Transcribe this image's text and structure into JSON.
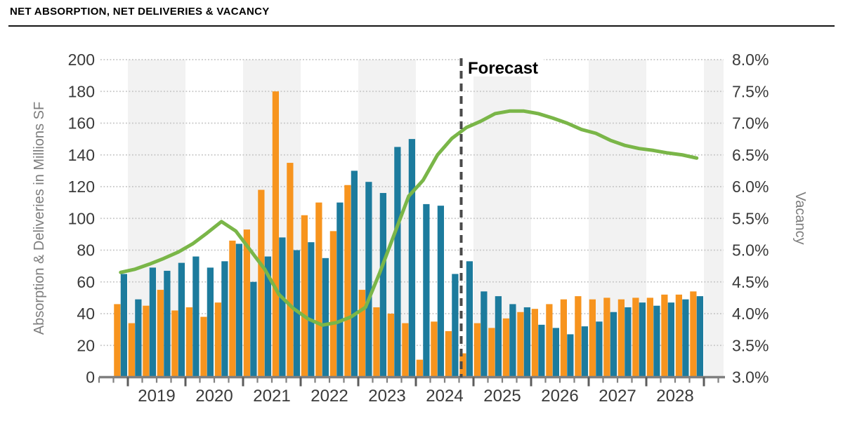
{
  "header": {
    "title": "NET ABSORPTION, NET DELIVERIES & VACANCY"
  },
  "chart_data": {
    "type": "combo_bar_line",
    "title": "NET ABSORPTION, NET DELIVERIES & VACANCY",
    "left_axis": {
      "title": "Absorption & Deliveries in Millions SF",
      "min": 0,
      "max": 200,
      "step": 20,
      "tick_labels": [
        "0",
        "20",
        "40",
        "60",
        "80",
        "100",
        "120",
        "140",
        "160",
        "180",
        "200"
      ]
    },
    "right_axis": {
      "title": "Vacancy",
      "min": 3.0,
      "max": 8.0,
      "step": 0.5,
      "tick_labels": [
        "3.0%",
        "3.5%",
        "4.0%",
        "4.5%",
        "5.0%",
        "5.5%",
        "6.0%",
        "6.5%",
        "7.0%",
        "7.5%",
        "8.0%"
      ]
    },
    "years": [
      "2019",
      "2020",
      "2021",
      "2022",
      "2023",
      "2024",
      "2025",
      "2026",
      "2027",
      "2028"
    ],
    "quarters": [
      "2018 Q4",
      "2019 Q1",
      "2019 Q2",
      "2019 Q3",
      "2019 Q4",
      "2020 Q1",
      "2020 Q2",
      "2020 Q3",
      "2020 Q4",
      "2021 Q1",
      "2021 Q2",
      "2021 Q3",
      "2021 Q4",
      "2022 Q1",
      "2022 Q2",
      "2022 Q3",
      "2022 Q4",
      "2023 Q1",
      "2023 Q2",
      "2023 Q3",
      "2023 Q4",
      "2024 Q1",
      "2024 Q2",
      "2024 Q3",
      "2024 Q4",
      "2025 Q1",
      "2025 Q2",
      "2025 Q3",
      "2025 Q4",
      "2026 Q1",
      "2026 Q2",
      "2026 Q3",
      "2026 Q4",
      "2027 Q1",
      "2027 Q2",
      "2027 Q3",
      "2027 Q4",
      "2028 Q1",
      "2028 Q2",
      "2028 Q3",
      "2028 Q4"
    ],
    "series": [
      {
        "name": "orange bars (millions SF)",
        "axis": "left",
        "color": "#F7941E",
        "values": [
          46,
          34,
          45,
          55,
          42,
          44,
          38,
          47,
          86,
          93,
          118,
          180,
          135,
          102,
          110,
          92,
          121,
          55,
          44,
          40,
          34,
          11,
          35,
          29,
          15,
          34,
          31,
          37,
          41,
          43,
          46,
          49,
          51,
          49,
          50,
          49,
          50,
          50,
          52,
          52,
          54
        ]
      },
      {
        "name": "teal bars (millions SF)",
        "axis": "left",
        "color": "#1C7B9D",
        "values": [
          65,
          49,
          69,
          67,
          72,
          76,
          69,
          73,
          84,
          60,
          76,
          88,
          80,
          85,
          75,
          110,
          130,
          123,
          116,
          145,
          150,
          109,
          108,
          65,
          73,
          54,
          51,
          46,
          44,
          33,
          31,
          27,
          32,
          35,
          41,
          44,
          47,
          45,
          47,
          49,
          51
        ]
      },
      {
        "name": "vacancy line (%)",
        "axis": "right",
        "color": "#7AB648",
        "values": [
          4.65,
          4.7,
          4.78,
          4.87,
          4.97,
          5.1,
          5.27,
          5.45,
          5.3,
          5.0,
          4.7,
          4.3,
          4.08,
          3.92,
          3.82,
          3.86,
          3.95,
          4.1,
          4.65,
          5.25,
          5.85,
          6.1,
          6.5,
          6.76,
          6.93,
          7.03,
          7.15,
          7.19,
          7.19,
          7.15,
          7.08,
          7.0,
          6.9,
          6.84,
          6.73,
          6.65,
          6.6,
          6.57,
          6.53,
          6.5,
          6.45
        ]
      }
    ],
    "forecast": {
      "label": "Forecast",
      "start_quarter": "2024 Q4"
    },
    "grid": "dotted horizontal lines every 20 (left axis) / 0.5% (right axis)",
    "legend": "none visible",
    "colors": {
      "orange": "#F7941E",
      "teal": "#1C7B9D",
      "green": "#7AB648",
      "band": "#F2F2F2",
      "grid": "#C5C5C5",
      "axis_line": "#808080",
      "tick_text": "#3A3A3A",
      "axis_title_text": "#7D7D7D",
      "forecast_dash": "#4A4A4A",
      "title_text": "#000000"
    }
  }
}
